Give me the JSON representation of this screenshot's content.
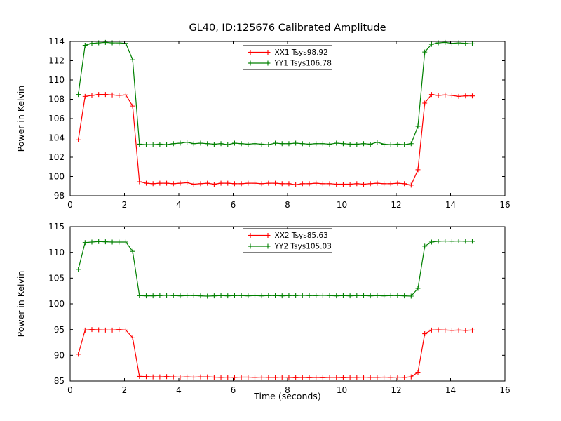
{
  "figure": {
    "background": "#ffffff",
    "frame_color": "#000000"
  },
  "chart_data": [
    {
      "type": "line",
      "title": "GL40, ID:125676 Calibrated Amplitude",
      "xlabel": "",
      "ylabel": "Power in Kelvin",
      "xlim": [
        0,
        16
      ],
      "ylim": [
        98,
        114
      ],
      "xticks": [
        0,
        2,
        4,
        6,
        8,
        10,
        12,
        14,
        16
      ],
      "yticks": [
        98,
        100,
        102,
        104,
        106,
        108,
        110,
        112,
        114
      ],
      "grid": false,
      "legend_position": "upper center",
      "x": [
        0.3,
        0.55,
        0.8,
        1.05,
        1.3,
        1.55,
        1.8,
        2.05,
        2.3,
        2.55,
        2.8,
        3.05,
        3.3,
        3.55,
        3.8,
        4.05,
        4.3,
        4.55,
        4.8,
        5.05,
        5.3,
        5.55,
        5.8,
        6.05,
        6.3,
        6.55,
        6.8,
        7.05,
        7.3,
        7.55,
        7.8,
        8.05,
        8.3,
        8.55,
        8.8,
        9.05,
        9.3,
        9.55,
        9.8,
        10.05,
        10.3,
        10.55,
        10.8,
        11.05,
        11.3,
        11.55,
        11.8,
        12.05,
        12.3,
        12.55,
        12.8,
        13.05,
        13.3,
        13.55,
        13.8,
        14.05,
        14.3,
        14.55,
        14.8
      ],
      "series": [
        {
          "name": "XX1 Tsys98.92",
          "color": "#ff0000",
          "marker": "plus",
          "values": [
            103.8,
            108.3,
            108.4,
            108.5,
            108.5,
            108.45,
            108.4,
            108.45,
            107.3,
            99.45,
            99.3,
            99.25,
            99.3,
            99.3,
            99.25,
            99.3,
            99.35,
            99.2,
            99.25,
            99.3,
            99.2,
            99.3,
            99.3,
            99.25,
            99.25,
            99.3,
            99.3,
            99.25,
            99.3,
            99.3,
            99.25,
            99.25,
            99.15,
            99.25,
            99.25,
            99.3,
            99.25,
            99.25,
            99.2,
            99.2,
            99.2,
            99.25,
            99.2,
            99.25,
            99.3,
            99.25,
            99.25,
            99.3,
            99.25,
            99.1,
            100.7,
            107.6,
            108.5,
            108.4,
            108.45,
            108.4,
            108.3,
            108.35,
            108.35
          ]
        },
        {
          "name": "YY1 Tsys106.78",
          "color": "#008000",
          "marker": "plus",
          "values": [
            108.5,
            113.6,
            113.8,
            113.85,
            113.9,
            113.85,
            113.85,
            113.8,
            112.1,
            103.35,
            103.3,
            103.3,
            103.35,
            103.3,
            103.4,
            103.45,
            103.55,
            103.4,
            103.45,
            103.4,
            103.35,
            103.4,
            103.3,
            103.45,
            103.4,
            103.35,
            103.4,
            103.35,
            103.3,
            103.45,
            103.4,
            103.4,
            103.45,
            103.4,
            103.35,
            103.4,
            103.4,
            103.35,
            103.45,
            103.4,
            103.35,
            103.35,
            103.4,
            103.35,
            103.55,
            103.35,
            103.3,
            103.35,
            103.3,
            103.4,
            105.2,
            112.9,
            113.7,
            113.85,
            113.9,
            113.8,
            113.85,
            113.8,
            113.75
          ]
        }
      ]
    },
    {
      "type": "line",
      "title": "",
      "xlabel": "Time (seconds)",
      "ylabel": "Power in Kelvin",
      "xlim": [
        0,
        16
      ],
      "ylim": [
        85,
        115
      ],
      "xticks": [
        0,
        2,
        4,
        6,
        8,
        10,
        12,
        14,
        16
      ],
      "yticks": [
        85,
        90,
        95,
        100,
        105,
        110,
        115
      ],
      "grid": false,
      "legend_position": "upper center",
      "x": [
        0.3,
        0.55,
        0.8,
        1.05,
        1.3,
        1.55,
        1.8,
        2.05,
        2.3,
        2.55,
        2.8,
        3.05,
        3.3,
        3.55,
        3.8,
        4.05,
        4.3,
        4.55,
        4.8,
        5.05,
        5.3,
        5.55,
        5.8,
        6.05,
        6.3,
        6.55,
        6.8,
        7.05,
        7.3,
        7.55,
        7.8,
        8.05,
        8.3,
        8.55,
        8.8,
        9.05,
        9.3,
        9.55,
        9.8,
        10.05,
        10.3,
        10.55,
        10.8,
        11.05,
        11.3,
        11.55,
        11.8,
        12.05,
        12.3,
        12.55,
        12.8,
        13.05,
        13.3,
        13.55,
        13.8,
        14.05,
        14.3,
        14.55,
        14.8
      ],
      "series": [
        {
          "name": "XX2 Tsys85.63",
          "color": "#ff0000",
          "marker": "plus",
          "values": [
            90.2,
            94.9,
            95.0,
            94.95,
            94.9,
            94.9,
            95.0,
            94.9,
            93.4,
            85.9,
            85.85,
            85.8,
            85.8,
            85.85,
            85.8,
            85.75,
            85.8,
            85.75,
            85.8,
            85.8,
            85.75,
            85.7,
            85.75,
            85.7,
            85.75,
            85.75,
            85.7,
            85.75,
            85.7,
            85.7,
            85.75,
            85.7,
            85.65,
            85.7,
            85.65,
            85.7,
            85.65,
            85.7,
            85.7,
            85.65,
            85.7,
            85.7,
            85.75,
            85.7,
            85.7,
            85.75,
            85.7,
            85.75,
            85.7,
            85.8,
            86.7,
            94.2,
            94.9,
            94.95,
            94.9,
            94.85,
            94.9,
            94.85,
            94.9
          ]
        },
        {
          "name": "YY2 Tsys105.03",
          "color": "#008000",
          "marker": "plus",
          "values": [
            106.7,
            111.9,
            112.0,
            112.1,
            112.05,
            112.0,
            112.0,
            112.0,
            110.2,
            101.6,
            101.55,
            101.55,
            101.6,
            101.65,
            101.6,
            101.55,
            101.6,
            101.6,
            101.55,
            101.5,
            101.55,
            101.6,
            101.55,
            101.6,
            101.6,
            101.55,
            101.6,
            101.55,
            101.6,
            101.6,
            101.55,
            101.6,
            101.6,
            101.65,
            101.6,
            101.6,
            101.65,
            101.6,
            101.55,
            101.6,
            101.55,
            101.6,
            101.6,
            101.55,
            101.6,
            101.55,
            101.6,
            101.6,
            101.55,
            101.5,
            103.0,
            111.2,
            112.0,
            112.15,
            112.2,
            112.15,
            112.2,
            112.15,
            112.15
          ]
        }
      ]
    }
  ]
}
